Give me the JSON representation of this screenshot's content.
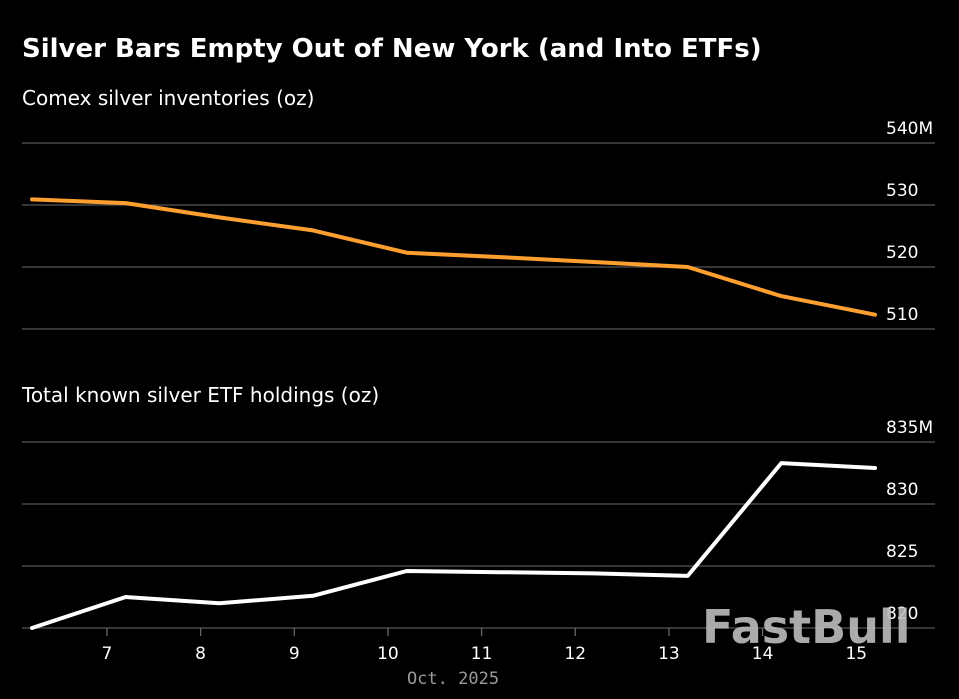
{
  "chart_data": {
    "title": "Silver Bars Empty Out of New York (and Into ETFs)",
    "x": [
      6.2,
      7.2,
      8.2,
      9.2,
      10.2,
      11.2,
      12.2,
      13.2,
      14.2,
      15.2
    ],
    "xticks": [
      7,
      8,
      9,
      10,
      11,
      12,
      13,
      14,
      15
    ],
    "xlabel": "Oct. 2025",
    "watermark": "FastBull",
    "panels": [
      {
        "type": "line",
        "subtitle": "Comex silver inventories (oz)",
        "color": "#ff9f30",
        "ylim": [
          505,
          540
        ],
        "yticks": [
          510,
          520,
          530,
          540
        ],
        "ytick_labels": [
          "510",
          "520",
          "530",
          "540M"
        ],
        "series": [
          {
            "values": [
              530.9,
              530.3,
              528.0,
              525.9,
              522.3,
              521.6,
              520.8,
              520.0,
              515.3,
              512.3
            ]
          }
        ]
      },
      {
        "type": "line",
        "subtitle": "Total known silver ETF holdings (oz)",
        "color": "#ffffff",
        "ylim": [
          820,
          835
        ],
        "yticks": [
          820,
          825,
          830,
          835
        ],
        "ytick_labels": [
          "820",
          "825",
          "830",
          "835M"
        ],
        "series": [
          {
            "values": [
              820.0,
              822.5,
              822.0,
              822.6,
              824.6,
              824.5,
              824.4,
              824.2,
              833.3,
              832.9
            ]
          }
        ]
      }
    ]
  }
}
